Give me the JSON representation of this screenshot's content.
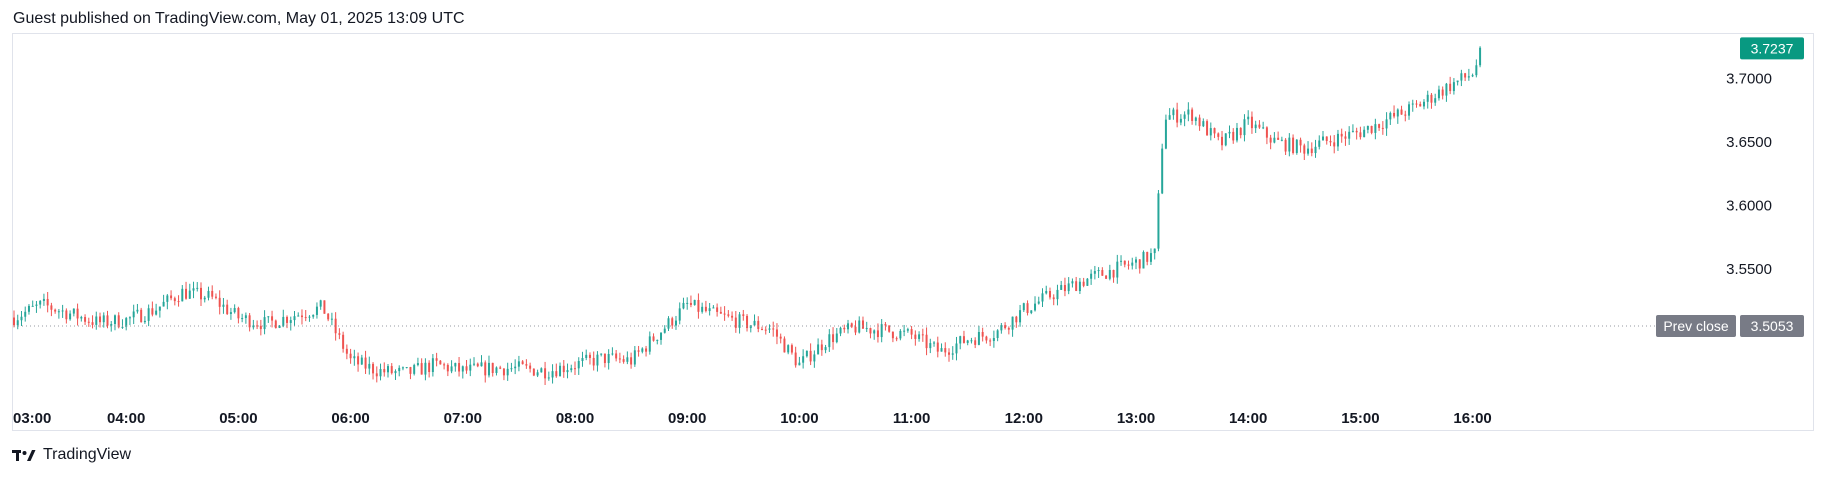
{
  "header": {
    "published_line": "Guest published on TradingView.com, May 01, 2025 13:09 UTC"
  },
  "footer": {
    "brand": "TradingView"
  },
  "colors": {
    "up": "#26a69a",
    "down": "#ef5350",
    "last_price_bg": "#089981",
    "prev_close_bg": "#787b86",
    "axis_text": "#131722",
    "dotted_line": "#9598a1"
  },
  "chart_data": {
    "type": "line",
    "style": "candlestick",
    "grid": false,
    "x_label": "",
    "y_label": "",
    "x_ticks": [
      "03:00",
      "04:00",
      "05:00",
      "06:00",
      "07:00",
      "08:00",
      "09:00",
      "10:00",
      "11:00",
      "12:00",
      "13:00",
      "14:00",
      "15:00",
      "16:00"
    ],
    "y_ticks": [
      "3.7000",
      "3.6500",
      "3.6000",
      "3.5500"
    ],
    "y_tick_values": [
      3.7,
      3.65,
      3.6,
      3.55
    ],
    "ylim": [
      3.455,
      3.735
    ],
    "xlim_hours": [
      3.0,
      16.3
    ],
    "last_price": {
      "label": "3.7237",
      "value": 3.7237
    },
    "prev_close": {
      "label": "Prev close",
      "price_label": "3.5053",
      "value": 3.5053
    },
    "series": [
      {
        "x": [
          "03:00",
          "03:15",
          "03:30",
          "03:45",
          "04:00",
          "04:15",
          "04:30",
          "04:45",
          "05:00",
          "05:15",
          "05:30",
          "05:45",
          "06:00",
          "06:15",
          "06:30",
          "06:45",
          "07:00",
          "07:15",
          "07:30",
          "07:45",
          "08:00",
          "08:15",
          "08:30",
          "08:45",
          "09:00",
          "09:15",
          "09:30",
          "09:45",
          "10:00",
          "10:15",
          "10:30",
          "10:45",
          "11:00",
          "11:15",
          "11:30",
          "11:45",
          "12:00",
          "12:15",
          "12:30",
          "12:45",
          "13:00",
          "13:10",
          "13:15",
          "13:30",
          "13:45",
          "14:00",
          "14:15",
          "14:30",
          "14:45",
          "15:00",
          "15:15",
          "15:30",
          "15:45",
          "16:00",
          "16:05"
        ],
        "values": [
          3.512,
          3.522,
          3.515,
          3.508,
          3.51,
          3.518,
          3.532,
          3.528,
          3.512,
          3.507,
          3.514,
          3.52,
          3.478,
          3.47,
          3.468,
          3.475,
          3.47,
          3.472,
          3.472,
          3.47,
          3.475,
          3.48,
          3.478,
          3.5,
          3.522,
          3.514,
          3.508,
          3.503,
          3.475,
          3.495,
          3.504,
          3.502,
          3.498,
          3.485,
          3.495,
          3.5,
          3.518,
          3.53,
          3.54,
          3.548,
          3.555,
          3.562,
          3.67,
          3.672,
          3.648,
          3.665,
          3.65,
          3.645,
          3.652,
          3.658,
          3.668,
          3.678,
          3.692,
          3.704,
          3.722
        ]
      }
    ]
  }
}
